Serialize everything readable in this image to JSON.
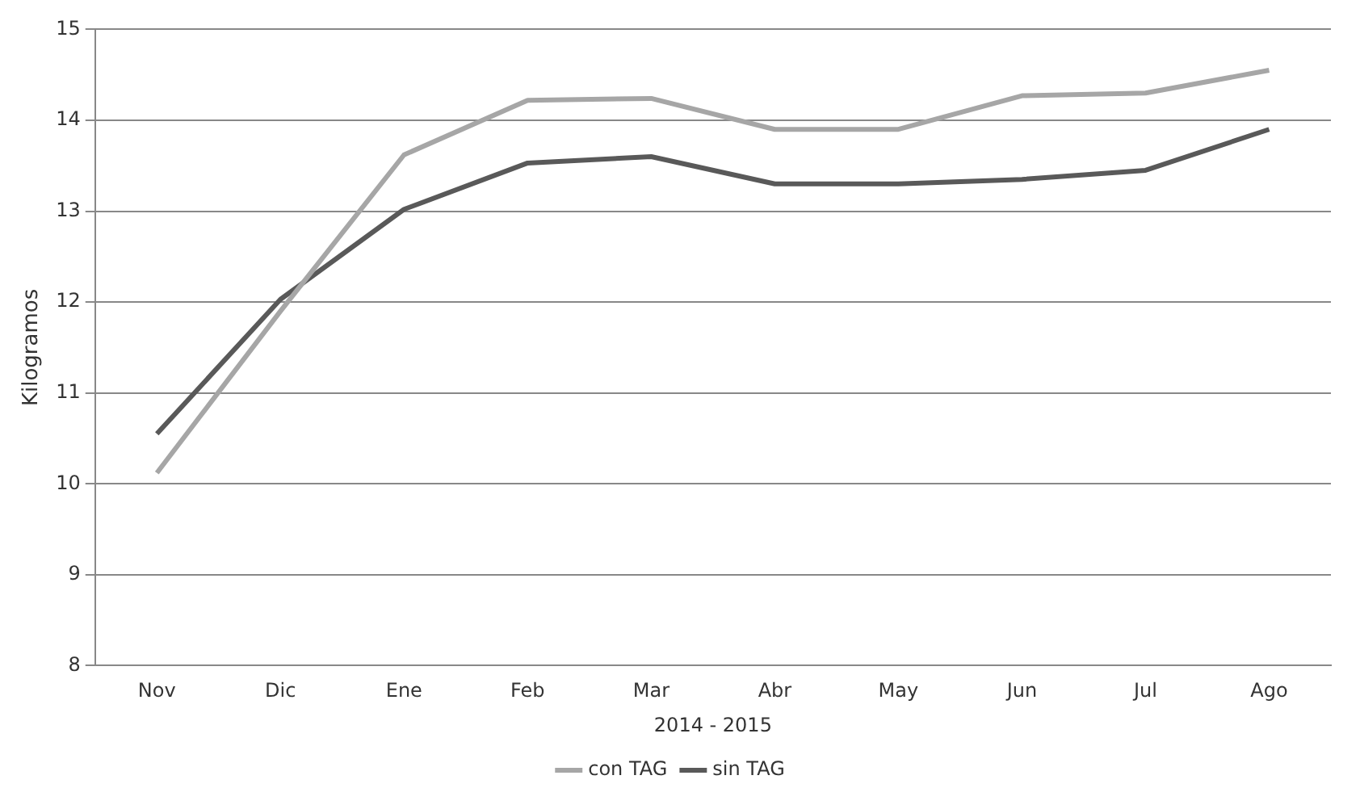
{
  "chart_data": {
    "type": "line",
    "xlabel": "2014 - 2015",
    "ylabel": "Kilogramos",
    "categories": [
      "Nov",
      "Dic",
      "Ene",
      "Feb",
      "Mar",
      "Abr",
      "May",
      "Jun",
      "Jul",
      "Ago"
    ],
    "series": [
      {
        "name": "con TAG",
        "color": "#a6a6a6",
        "values": [
          10.12,
          11.9,
          13.62,
          14.22,
          14.24,
          13.9,
          13.9,
          14.27,
          14.3,
          14.55
        ]
      },
      {
        "name": "sin TAG",
        "color": "#595959",
        "values": [
          10.55,
          12.03,
          13.02,
          13.53,
          13.6,
          13.3,
          13.3,
          13.35,
          13.45,
          13.9
        ]
      }
    ],
    "ylim": [
      8,
      15
    ],
    "yticks": [
      8,
      9,
      10,
      11,
      12,
      13,
      14,
      15
    ],
    "grid": "y",
    "legend": "bottom",
    "marker": "none",
    "line_style": "solid"
  }
}
